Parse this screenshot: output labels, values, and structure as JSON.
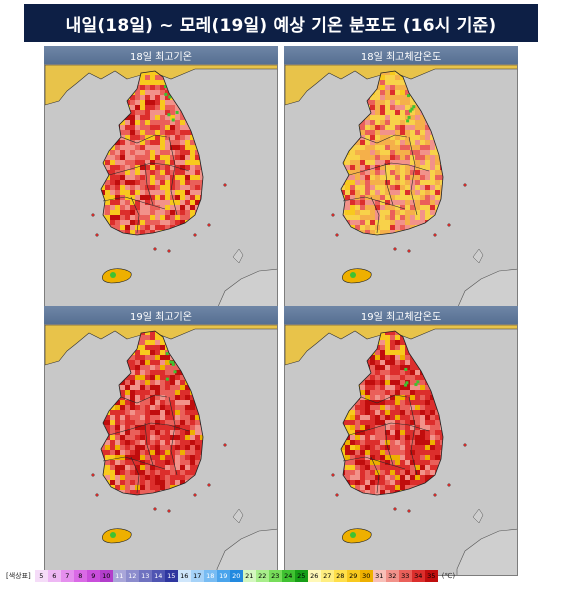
{
  "title": "내일(18일) ~ 모레(19일) 예상 기온 분포도 (16시 기준)",
  "panels": [
    {
      "label": "18일 최고기온",
      "intensity": "medium"
    },
    {
      "label": "18일 최고체감온도",
      "intensity": "light"
    },
    {
      "label": "19일 최고기온",
      "intensity": "high"
    },
    {
      "label": "19일 최고체감온도",
      "intensity": "high"
    }
  ],
  "legend": {
    "name": "[색상표]",
    "unit": "(℃)",
    "items": [
      {
        "value": "5",
        "color": "#f5dcf8"
      },
      {
        "value": "6",
        "color": "#eeb8f4"
      },
      {
        "value": "7",
        "color": "#e58fee"
      },
      {
        "value": "8",
        "color": "#da6ae6"
      },
      {
        "value": "9",
        "color": "#c94edb"
      },
      {
        "value": "10",
        "color": "#b23ecb"
      },
      {
        "value": "11",
        "color": "#a9a6d9"
      },
      {
        "value": "12",
        "color": "#8c8ccd"
      },
      {
        "value": "13",
        "color": "#6f72c0"
      },
      {
        "value": "14",
        "color": "#4f55b2"
      },
      {
        "value": "15",
        "color": "#2e36a0"
      },
      {
        "value": "16",
        "color": "#cfe6fb"
      },
      {
        "value": "17",
        "color": "#a5d2f8"
      },
      {
        "value": "18",
        "color": "#78bcf3"
      },
      {
        "value": "19",
        "color": "#4aa4ec"
      },
      {
        "value": "20",
        "color": "#2289df"
      },
      {
        "value": "21",
        "color": "#d4f7c0"
      },
      {
        "value": "22",
        "color": "#a8ee8b"
      },
      {
        "value": "23",
        "color": "#77dd5a"
      },
      {
        "value": "24",
        "color": "#3fc231"
      },
      {
        "value": "25",
        "color": "#169e16"
      },
      {
        "value": "26",
        "color": "#fff8b8"
      },
      {
        "value": "27",
        "color": "#ffee80"
      },
      {
        "value": "28",
        "color": "#ffdf4a"
      },
      {
        "value": "29",
        "color": "#f8c91e"
      },
      {
        "value": "30",
        "color": "#eeb000"
      },
      {
        "value": "31",
        "color": "#f8c0b8"
      },
      {
        "value": "32",
        "color": "#f2928a"
      },
      {
        "value": "33",
        "color": "#ea605a"
      },
      {
        "value": "34",
        "color": "#dc2e2c"
      },
      {
        "value": "35",
        "color": "#c00d0d"
      }
    ]
  }
}
